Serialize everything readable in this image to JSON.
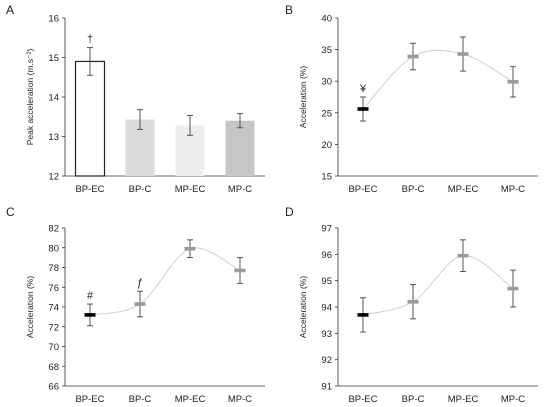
{
  "panels": [
    {
      "letter": "A"
    },
    {
      "letter": "B"
    },
    {
      "letter": "C"
    },
    {
      "letter": "D"
    }
  ],
  "chart_data": [
    {
      "panel": "A",
      "type": "bar",
      "ylabel": "Peak acceleration (m.s⁻²)",
      "categories": [
        "BP-EC",
        "BP-C",
        "MP-EC",
        "MP-C"
      ],
      "values": [
        14.9,
        13.43,
        13.28,
        13.4
      ],
      "errors": [
        0.35,
        0.25,
        0.25,
        0.18
      ],
      "ylim": [
        12,
        16
      ],
      "yticks": [
        "12",
        "13",
        "14",
        "15",
        "16"
      ],
      "colors": [
        "#ffffff",
        "#dadada",
        "#eeeeee",
        "#c6c6c6"
      ],
      "annotations": [
        {
          "category": "BP-EC",
          "text": "†"
        }
      ]
    },
    {
      "panel": "B",
      "type": "line",
      "ylabel": "Acceleration (%)",
      "categories": [
        "BP-EC",
        "BP-C",
        "MP-EC",
        "MP-C"
      ],
      "values": [
        25.6,
        33.9,
        34.3,
        29.9
      ],
      "errors": [
        1.9,
        2.1,
        2.7,
        2.4
      ],
      "ylim": [
        15,
        40
      ],
      "yticks": [
        "15",
        "20",
        "25",
        "30",
        "35",
        "40"
      ],
      "marker_colors": [
        "#000000",
        "#9a9a9a",
        "#9a9a9a",
        "#9a9a9a"
      ],
      "annotations": [
        {
          "category": "BP-EC",
          "text": "¥"
        }
      ]
    },
    {
      "panel": "C",
      "type": "line",
      "ylabel": "Acceleration (%)",
      "categories": [
        "BP-EC",
        "BP-C",
        "MP-EC",
        "MP-C"
      ],
      "values": [
        73.2,
        74.3,
        79.9,
        77.7
      ],
      "errors": [
        1.1,
        1.3,
        0.9,
        1.3
      ],
      "ylim": [
        66,
        82
      ],
      "yticks": [
        "66",
        "68",
        "70",
        "72",
        "74",
        "76",
        "78",
        "80",
        "82"
      ],
      "marker_colors": [
        "#000000",
        "#9a9a9a",
        "#9a9a9a",
        "#9a9a9a"
      ],
      "annotations": [
        {
          "category": "BP-EC",
          "text": "#"
        },
        {
          "category": "BP-C",
          "text": "ƒ"
        }
      ]
    },
    {
      "panel": "D",
      "type": "line",
      "ylabel": "Acceleration (%)",
      "categories": [
        "BP-EC",
        "BP-C",
        "MP-EC",
        "MP-C"
      ],
      "values": [
        93.7,
        94.2,
        95.95,
        94.7
      ],
      "errors": [
        0.65,
        0.65,
        0.6,
        0.7
      ],
      "ylim": [
        91,
        97
      ],
      "yticks": [
        "91",
        "92",
        "93",
        "94",
        "95",
        "96",
        "97"
      ],
      "marker_colors": [
        "#000000",
        "#9a9a9a",
        "#9a9a9a",
        "#9a9a9a"
      ],
      "annotations": []
    }
  ]
}
